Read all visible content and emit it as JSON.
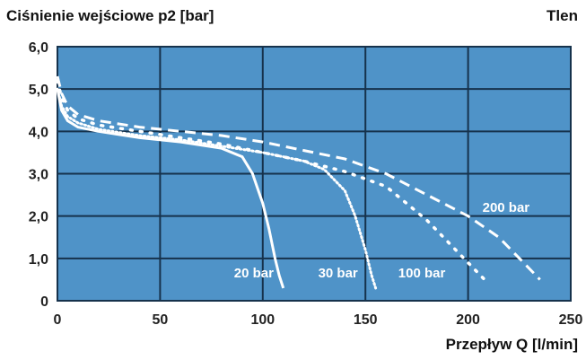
{
  "chart_data": {
    "type": "line",
    "title": "Ciśnienie wejściowe  p2 [bar]",
    "gas_label": "Tlen",
    "xlabel": "Przepływ Q [l/min]",
    "ylabel": "",
    "xlim": [
      0,
      250
    ],
    "ylim": [
      0,
      6
    ],
    "x_ticks": [
      "0",
      "50",
      "100",
      "150",
      "200",
      "250"
    ],
    "y_ticks": [
      "0",
      "1,0",
      "2,0",
      "3,0",
      "4,0",
      "5,0",
      "6,0"
    ],
    "grid": true,
    "background_color": "#4f93c8",
    "grid_color": "#16324c",
    "line_color": "#ffffff",
    "series": [
      {
        "name": "20 bar",
        "style": "solid",
        "x": [
          0,
          2,
          5,
          10,
          20,
          40,
          60,
          80,
          90,
          95,
          100,
          103,
          106,
          108,
          110
        ],
        "y": [
          5.0,
          4.5,
          4.25,
          4.1,
          4.0,
          3.85,
          3.75,
          3.6,
          3.4,
          3.0,
          2.3,
          1.7,
          1.0,
          0.6,
          0.3
        ]
      },
      {
        "name": "30 bar",
        "style": "dotted",
        "x": [
          0,
          2,
          5,
          10,
          20,
          40,
          60,
          80,
          100,
          120,
          130,
          140,
          145,
          150,
          153,
          155
        ],
        "y": [
          5.0,
          4.6,
          4.35,
          4.2,
          4.05,
          3.9,
          3.8,
          3.65,
          3.5,
          3.3,
          3.1,
          2.6,
          2.0,
          1.2,
          0.6,
          0.3
        ]
      },
      {
        "name": "100 bar",
        "style": "dotted-sparse",
        "x": [
          0,
          2,
          5,
          10,
          20,
          40,
          60,
          80,
          100,
          120,
          140,
          160,
          170,
          180,
          190,
          200,
          210
        ],
        "y": [
          5.2,
          4.8,
          4.5,
          4.3,
          4.15,
          4.0,
          3.85,
          3.7,
          3.5,
          3.3,
          3.05,
          2.7,
          2.3,
          1.9,
          1.4,
          0.9,
          0.4
        ]
      },
      {
        "name": "200 bar",
        "style": "dashed",
        "x": [
          0,
          2,
          5,
          10,
          20,
          40,
          60,
          80,
          100,
          120,
          140,
          160,
          180,
          200,
          215,
          225,
          235
        ],
        "y": [
          5.3,
          4.9,
          4.6,
          4.4,
          4.25,
          4.1,
          4.0,
          3.9,
          3.75,
          3.55,
          3.35,
          3.0,
          2.5,
          2.0,
          1.5,
          1.0,
          0.5
        ]
      }
    ],
    "series_labels": [
      {
        "text": "20 bar",
        "x": 86,
        "y": 0.55
      },
      {
        "text": "30 bar",
        "x": 127,
        "y": 0.55
      },
      {
        "text": "100 bar",
        "x": 166,
        "y": 0.55
      },
      {
        "text": "200 bar",
        "x": 207,
        "y": 2.1
      }
    ]
  }
}
